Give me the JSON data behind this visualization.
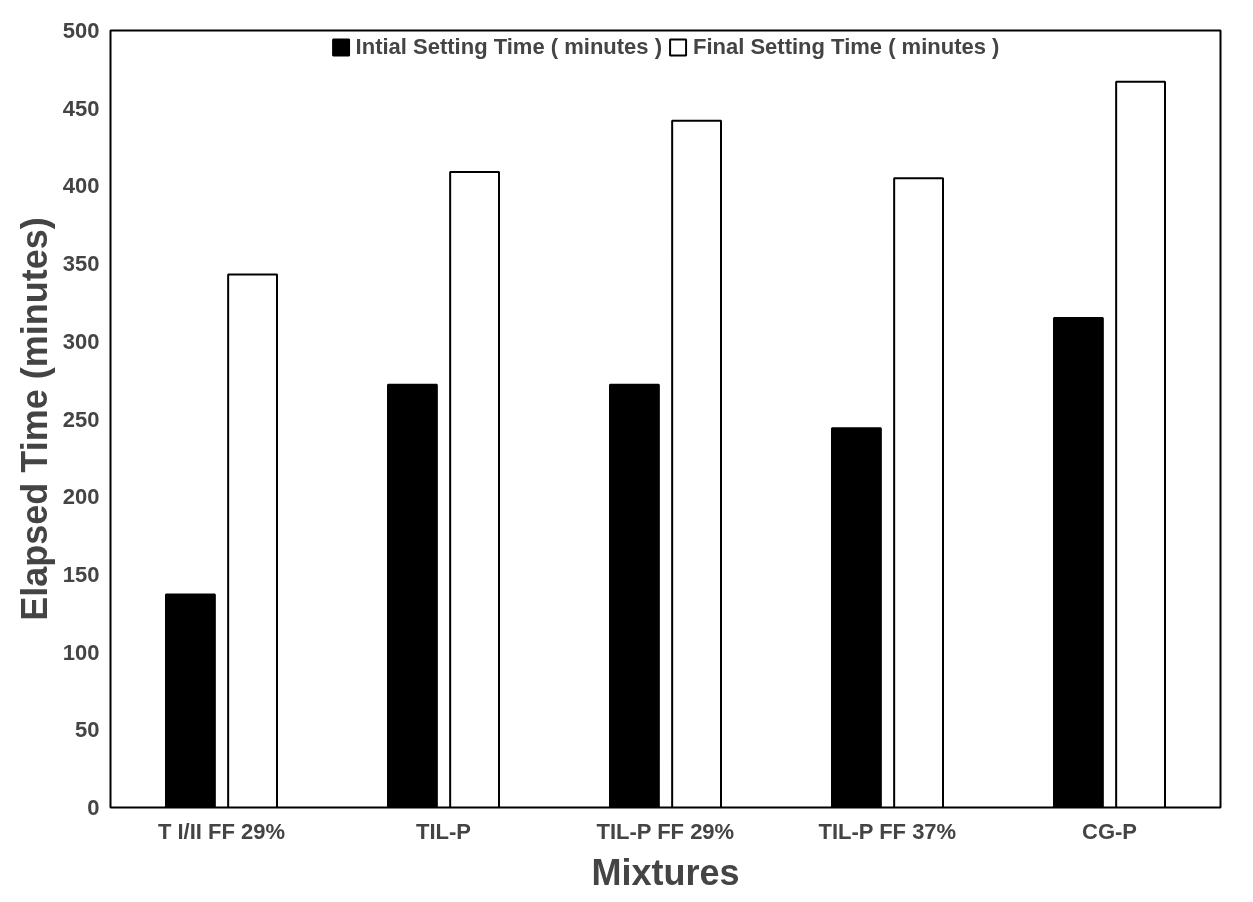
{
  "chart_data": {
    "type": "bar",
    "xlabel": "Mixtures",
    "ylabel": "Elapsed Time (minutes)",
    "categories": [
      "T I/II FF 29%",
      "TIL-P",
      "TIL-P FF 29%",
      "TIL-P FF 37%",
      "CG-P"
    ],
    "series": [
      {
        "name": "Intial Setting Time ( minutes )",
        "color": "#000000",
        "values": [
          137,
          272,
          272,
          244,
          315
        ]
      },
      {
        "name": "Final Setting Time ( minutes )",
        "color": "#ffffff",
        "values": [
          343,
          409,
          442,
          405,
          467
        ]
      }
    ],
    "ylim": [
      0,
      500
    ],
    "yticks": [
      0,
      50,
      100,
      150,
      200,
      250,
      300,
      350,
      400,
      450,
      500
    ],
    "grid": false,
    "legend": "top"
  }
}
